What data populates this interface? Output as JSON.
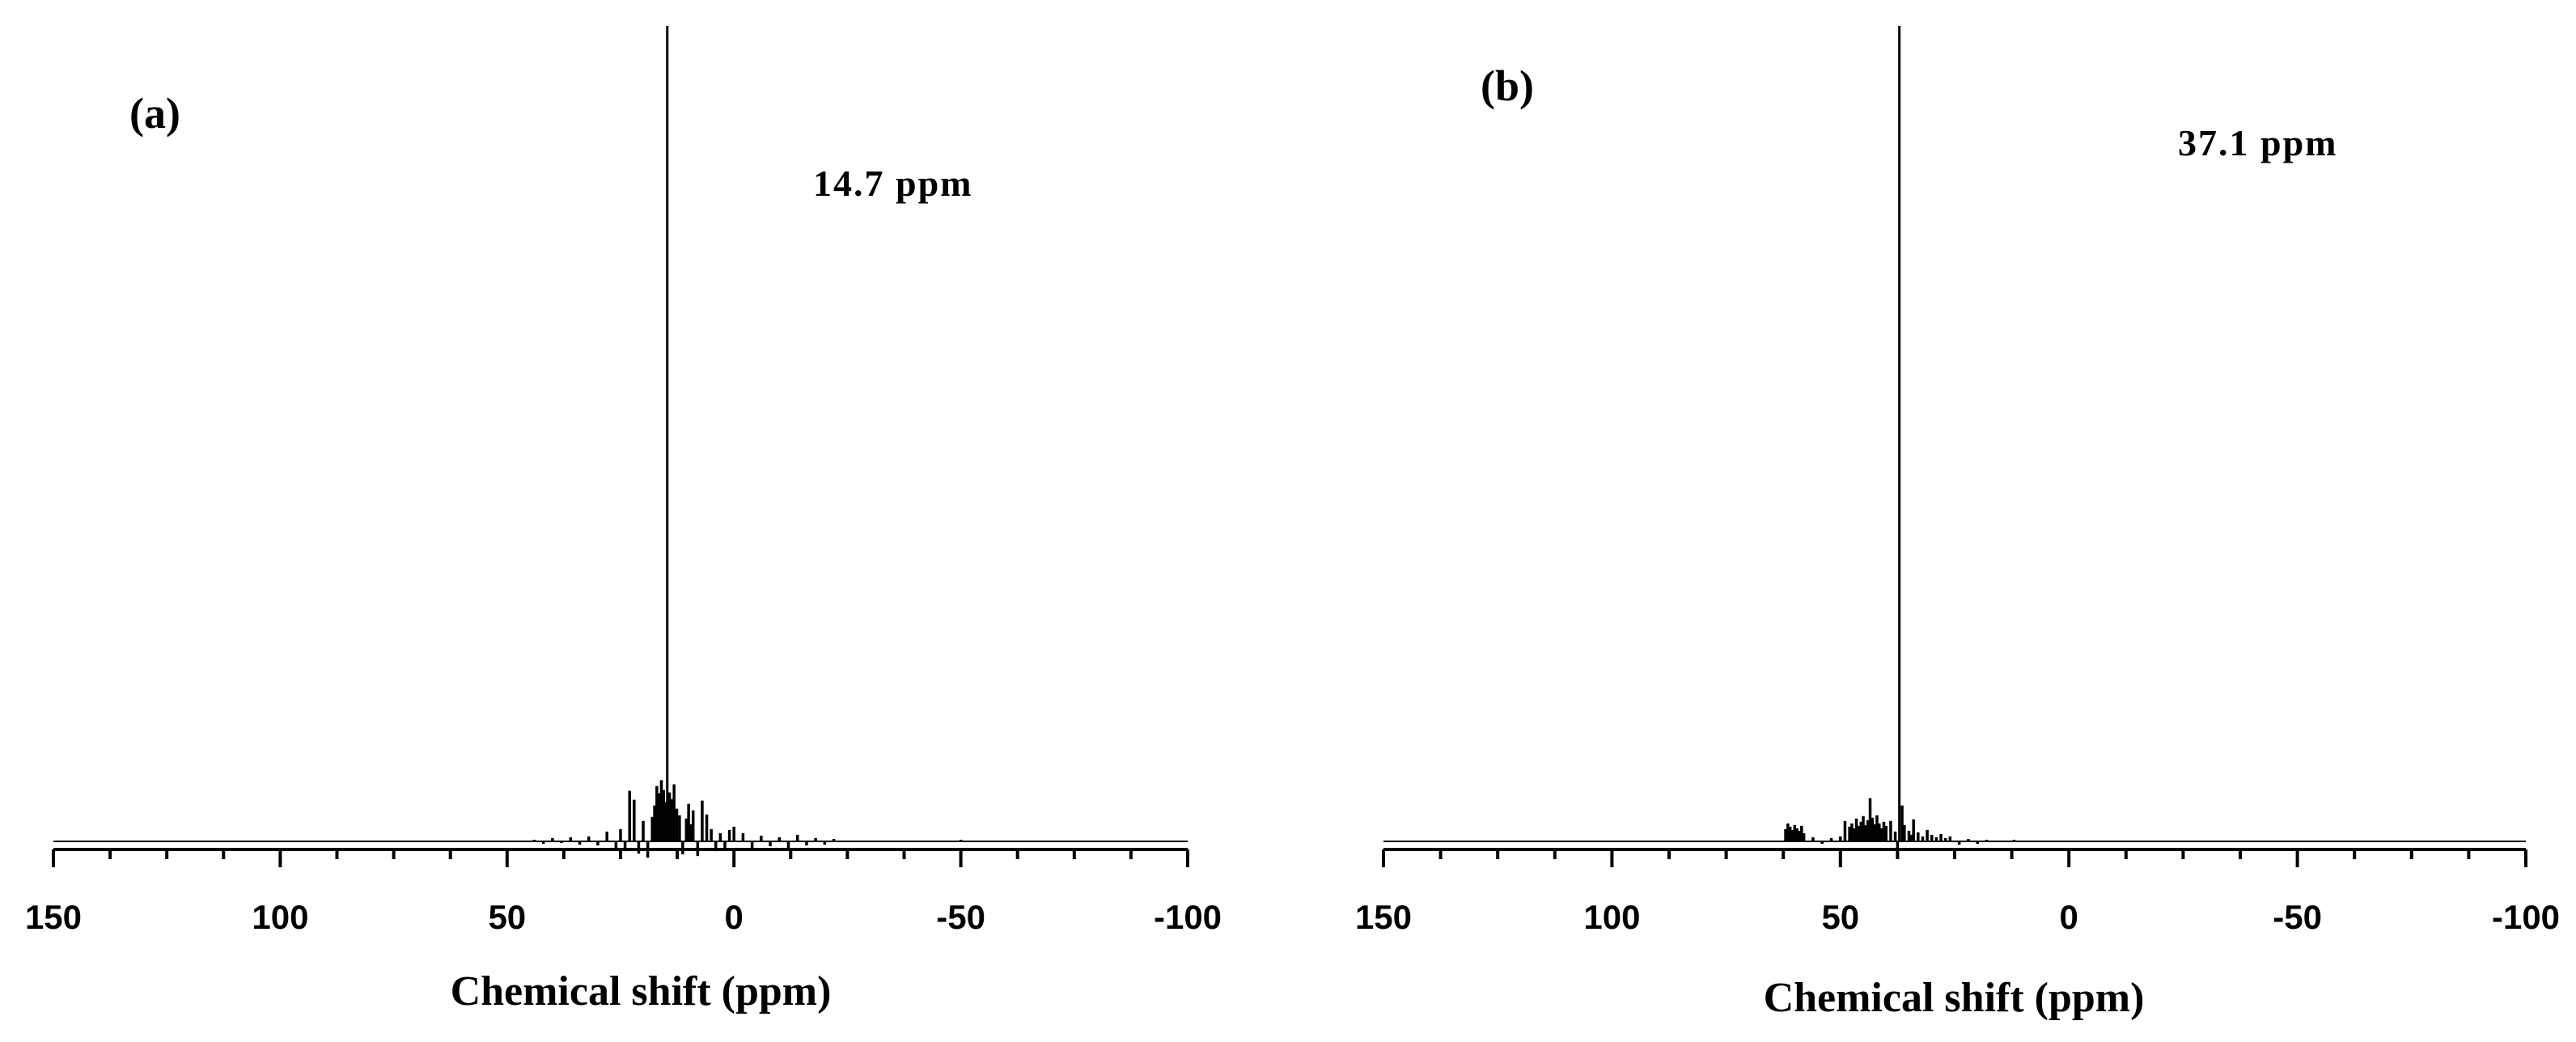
{
  "chart_data": [
    {
      "type": "line",
      "panel_label": "(a)",
      "peak_label": "14.7 ppm",
      "xlabel": "Chemical shift (ppm)",
      "ylabel": "",
      "xlim": [
        150,
        -100
      ],
      "x_ticks": [
        150,
        100,
        50,
        0,
        -50,
        -100
      ],
      "x_tick_labels": [
        "150",
        "100",
        "50",
        "0",
        "-50",
        "-100"
      ],
      "y_axis_shown": false,
      "grid": false,
      "series": [
        {
          "x": [
            44,
            42,
            40,
            38,
            36,
            34,
            32,
            30,
            28,
            26,
            25,
            24,
            23,
            22,
            21,
            20,
            19,
            18,
            17.5,
            17,
            16.5,
            16,
            15.5,
            15,
            14.7,
            14.2,
            13.8,
            13.2,
            12.6,
            12,
            11.3,
            10.5,
            10,
            9.5,
            9,
            8,
            7,
            6,
            5,
            4,
            3,
            2,
            1,
            0,
            -2,
            -4,
            -6,
            -8,
            -10,
            -12,
            -14,
            -16,
            -18,
            -20,
            -22,
            -50
          ],
          "y": [
            0.2,
            -0.3,
            0.4,
            -0.2,
            0.5,
            -0.4,
            0.6,
            -0.5,
            1.2,
            -0.8,
            1.5,
            -1.2,
            6.2,
            5.1,
            -1.5,
            2.5,
            -2.0,
            3.0,
            4.4,
            6.8,
            5.9,
            7.5,
            6.3,
            4.8,
            100,
            6.0,
            5.2,
            7.0,
            4.0,
            3.2,
            -1.6,
            2.8,
            4.6,
            2.1,
            3.8,
            -1.8,
            5.0,
            3.3,
            1.5,
            -1.2,
            1.0,
            -0.9,
            1.4,
            1.8,
            1.0,
            -0.8,
            0.7,
            -0.6,
            0.5,
            -0.9,
            0.8,
            -0.5,
            0.4,
            -0.4,
            0.3,
            0.2
          ]
        }
      ]
    },
    {
      "type": "line",
      "panel_label": "(b)",
      "peak_label": "37.1 ppm",
      "xlabel": "Chemical shift (ppm)",
      "ylabel": "",
      "xlim": [
        150,
        -100
      ],
      "x_ticks": [
        150,
        100,
        50,
        0,
        -50,
        -100
      ],
      "x_tick_labels": [
        "150",
        "100",
        "50",
        "0",
        "-50",
        "-100"
      ],
      "y_axis_shown": false,
      "grid": false,
      "series": [
        {
          "x": [
            62,
            61.5,
            61,
            60.5,
            60,
            59.5,
            59,
            58.5,
            58,
            56,
            54,
            52,
            50,
            49,
            48,
            47.5,
            47,
            46.5,
            46,
            45.5,
            45,
            44.5,
            44,
            43.5,
            43,
            42.5,
            42,
            41.5,
            41,
            40.5,
            40,
            39,
            38,
            37.5,
            37.1,
            36.5,
            36,
            35,
            34.5,
            34,
            33,
            32,
            31,
            30,
            29,
            28,
            27,
            26,
            24,
            22,
            20,
            18,
            12
          ],
          "y": [
            1.5,
            2.2,
            1.8,
            1.4,
            2.0,
            1.6,
            1.3,
            1.9,
            1.0,
            0.5,
            -0.3,
            0.4,
            0.6,
            2.5,
            1.8,
            2.2,
            1.6,
            2.8,
            1.9,
            2.4,
            3.1,
            2.0,
            2.6,
            5.3,
            2.9,
            2.1,
            3.2,
            2.2,
            1.6,
            2.4,
            1.9,
            2.5,
            1.2,
            -0.8,
            100,
            4.4,
            2.0,
            1.3,
            0.8,
            2.7,
            1.1,
            0.6,
            1.4,
            0.8,
            0.5,
            0.9,
            0.4,
            0.6,
            -0.4,
            0.3,
            -0.3,
            0.2,
            0.2
          ]
        }
      ]
    }
  ]
}
